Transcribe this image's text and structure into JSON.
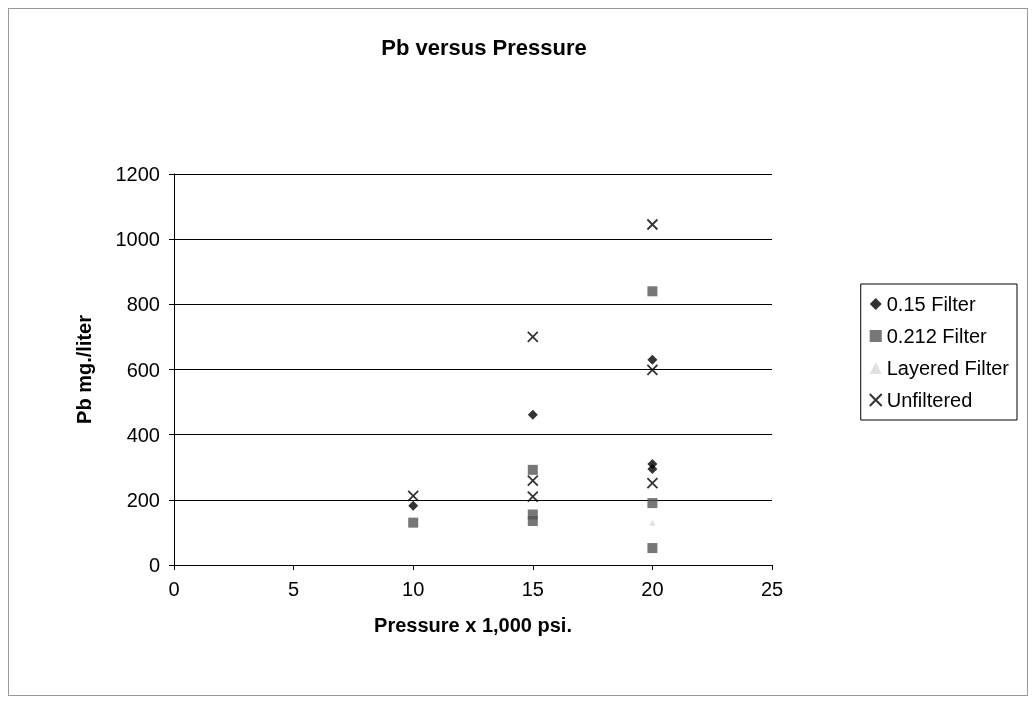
{
  "chart_data": {
    "type": "scatter",
    "title": "Pb versus Pressure",
    "xlabel": "Pressure x 1,000 psi.",
    "ylabel": "Pb mg./liter",
    "series": [
      {
        "name": "0.15 Filter",
        "color": "#000000",
        "marker": "diamond",
        "x": [
          10,
          15,
          20,
          20,
          20
        ],
        "values": [
          182,
          461,
          630,
          310,
          295
        ]
      },
      {
        "name": "0.212 Filter",
        "color": "#555555",
        "marker": "square",
        "x": [
          10,
          15,
          15,
          15,
          20,
          20,
          20
        ],
        "values": [
          130,
          292,
          155,
          135,
          840,
          190,
          52
        ]
      },
      {
        "name": "Layered Filter",
        "color": "#d8d8d8",
        "marker": "triangle",
        "x": [
          20
        ],
        "values": [
          130
        ]
      },
      {
        "name": "Unfiltered",
        "color": "#000000",
        "marker": "cross",
        "x": [
          10,
          15,
          15,
          15,
          20,
          20,
          20
        ],
        "values": [
          212,
          700,
          259,
          210,
          1045,
          599,
          251
        ]
      }
    ],
    "xlim": [
      0,
      25
    ],
    "xticks": [
      0,
      5,
      10,
      15,
      20,
      25
    ],
    "ylim": [
      0,
      1200
    ],
    "yticks": [
      0,
      200,
      400,
      600,
      800,
      1000,
      1200
    ],
    "grid": "y",
    "legend": "right"
  }
}
